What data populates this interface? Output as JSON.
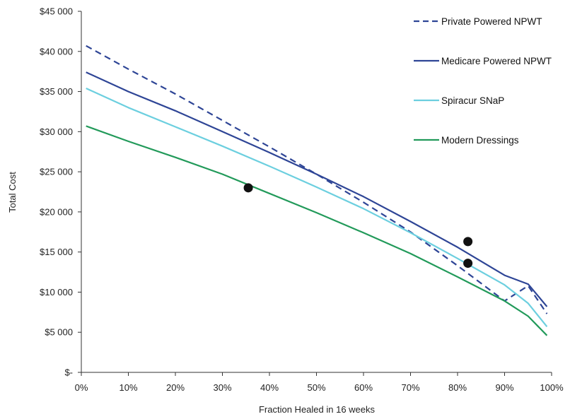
{
  "chart_data": {
    "type": "line",
    "title": "",
    "xlabel": "Fraction Healed in 16 weeks",
    "ylabel": "Total Cost",
    "xlim": [
      0,
      100
    ],
    "ylim": [
      0,
      45000
    ],
    "x_ticks": [
      0,
      10,
      20,
      30,
      40,
      50,
      60,
      70,
      80,
      90,
      100
    ],
    "x_tick_labels": [
      "0%",
      "10%",
      "20%",
      "30%",
      "40%",
      "50%",
      "60%",
      "70%",
      "80%",
      "90%",
      "100%"
    ],
    "y_ticks": [
      0,
      5000,
      10000,
      15000,
      20000,
      25000,
      30000,
      35000,
      40000,
      45000
    ],
    "y_tick_labels": [
      "$-",
      "$5 000",
      "$10 000",
      "$15 000",
      "$20 000",
      "$25 000",
      "$30 000",
      "$35 000",
      "$40 000",
      "$45 000"
    ],
    "grid": false,
    "legend_position": "top-right",
    "x": [
      1,
      10,
      20,
      30,
      40,
      50,
      60,
      70,
      80,
      90,
      95,
      99
    ],
    "series": [
      {
        "name": "Private Powered NPWT",
        "color": "#2e4596",
        "dash": "dashed",
        "values": [
          40700,
          37800,
          34700,
          31400,
          28100,
          24700,
          21200,
          17500,
          13300,
          8900,
          10800,
          7300
        ]
      },
      {
        "name": "Medicare Powered NPWT",
        "color": "#2e4596",
        "dash": "solid",
        "values": [
          37400,
          35000,
          32600,
          30000,
          27400,
          24700,
          21900,
          18800,
          15600,
          12100,
          11000,
          8200
        ]
      },
      {
        "name": "Spiracur SNaP",
        "color": "#6ccfdf",
        "dash": "solid",
        "values": [
          35400,
          33000,
          30600,
          28200,
          25700,
          23100,
          20400,
          17400,
          14200,
          10900,
          8600,
          5700
        ]
      },
      {
        "name": "Modern Dressings",
        "color": "#229a5a",
        "dash": "solid",
        "values": [
          30700,
          28800,
          26800,
          24700,
          22300,
          19900,
          17400,
          14800,
          11900,
          8900,
          7000,
          4600
        ]
      }
    ],
    "highlight_points": [
      {
        "x": 35.5,
        "y": 23000
      },
      {
        "x": 82.2,
        "y": 16300
      },
      {
        "x": 82.2,
        "y": 13600
      }
    ]
  }
}
